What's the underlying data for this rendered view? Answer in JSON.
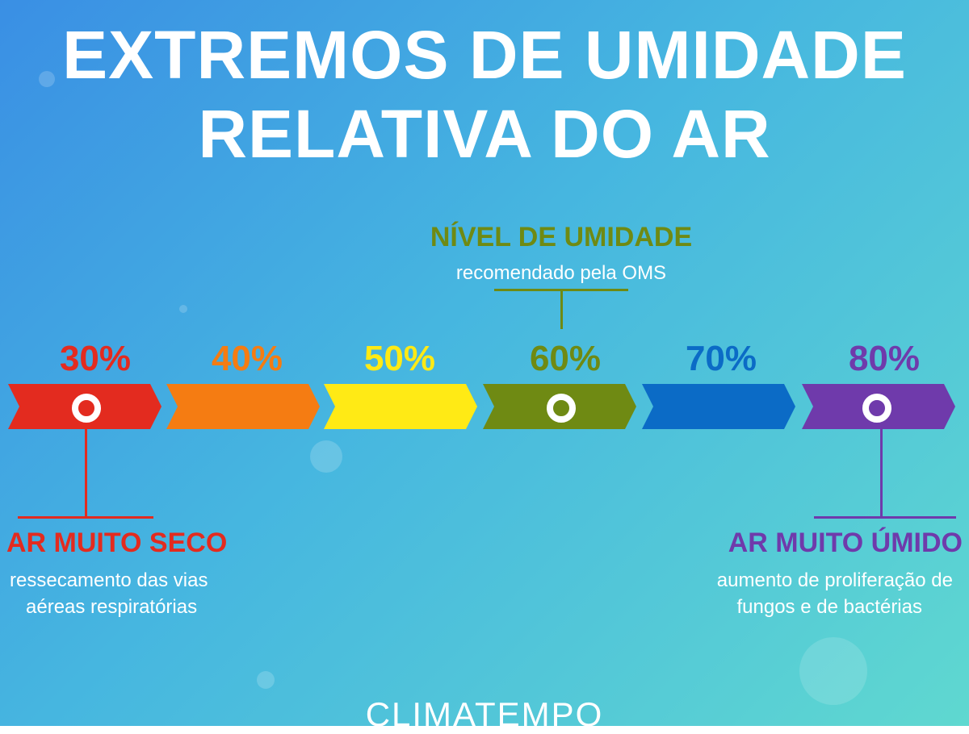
{
  "title": {
    "line1": "EXTREMOS DE UMIDADE",
    "line2": "RELATIVA DO AR"
  },
  "scale": [
    {
      "label": "30%",
      "value": 30,
      "color": "#e32b1f"
    },
    {
      "label": "40%",
      "value": 40,
      "color": "#f57c12"
    },
    {
      "label": "50%",
      "value": 50,
      "color": "#ffea15"
    },
    {
      "label": "60%",
      "value": 60,
      "color": "#6f8a13"
    },
    {
      "label": "70%",
      "value": 70,
      "color": "#0b6bc6"
    },
    {
      "label": "80%",
      "value": 80,
      "color": "#6f3aab"
    }
  ],
  "recommended": {
    "heading": "NÍVEL DE UMIDADE",
    "subtext": "recomendado pela OMS",
    "value": 60,
    "color": "#6f8a13"
  },
  "dry": {
    "heading": "AR MUITO SECO",
    "subtext_line1": "ressecamento das vias",
    "subtext_line2": "aéreas respiratórias",
    "value": 30,
    "color": "#e32b1f"
  },
  "humid": {
    "heading": "AR MUITO ÚMIDO",
    "subtext_line1": "aumento de proliferação de",
    "subtext_line2": "fungos e de bactérias",
    "value": 80,
    "color": "#6f3aab"
  },
  "logo": "CLIMATEMPO"
}
